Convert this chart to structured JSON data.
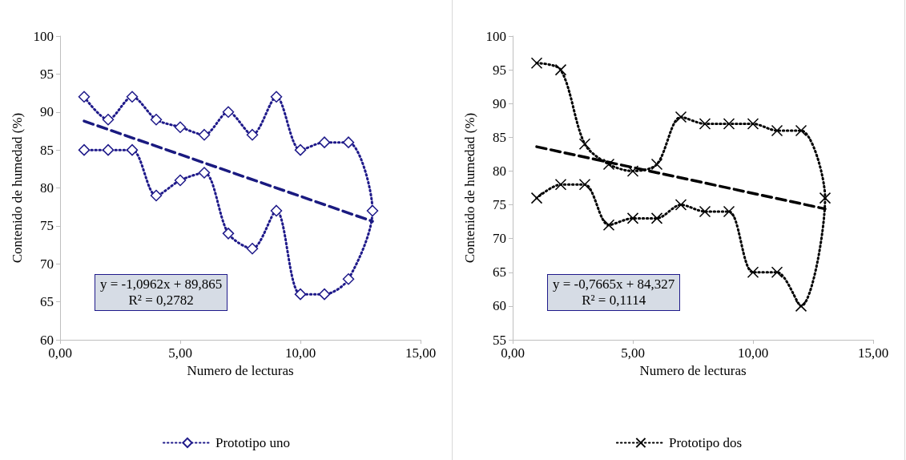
{
  "chart_data": [
    {
      "type": "line",
      "xlabel": "Numero de lecturas",
      "ylabel": "Contenido de humedad (%)",
      "xlim": [
        0,
        15
      ],
      "xticks": [
        {
          "value": 0,
          "label": "0,00"
        },
        {
          "value": 5,
          "label": "5,00"
        },
        {
          "value": 10,
          "label": "10,00"
        },
        {
          "value": 15,
          "label": "15,00"
        }
      ],
      "ylim": [
        60,
        100
      ],
      "yticks": [
        60,
        65,
        70,
        75,
        80,
        85,
        90,
        95,
        100
      ],
      "grid": false,
      "legend": "bottom",
      "annotations": [
        "y = -1,0962x + 89,865",
        "R² = 0,2782"
      ],
      "series": [
        {
          "name": "Prototipo uno",
          "marker": "diamond",
          "line_style": "dotted",
          "color": "#1f1a8a",
          "x": [
            1,
            2,
            3,
            4,
            5,
            6,
            7,
            8,
            9,
            10,
            11,
            12,
            13,
            12,
            11,
            10,
            9,
            8,
            7,
            6,
            5,
            4,
            3,
            2,
            1
          ],
          "values": [
            92,
            89,
            92,
            89,
            88,
            87,
            90,
            87,
            92,
            85,
            86,
            86,
            77,
            68,
            66,
            66,
            77,
            72,
            74,
            82,
            81,
            79,
            85,
            85,
            85
          ]
        },
        {
          "marker": "none",
          "line_style": "dashed",
          "color": "#1a1a80",
          "x": [
            1,
            13
          ],
          "values": [
            88.8,
            75.6
          ]
        }
      ]
    },
    {
      "type": "line",
      "xlabel": "Numero de lecturas",
      "ylabel": "Contenido de humedad (%)",
      "xlim": [
        0,
        15
      ],
      "xticks": [
        {
          "value": 0,
          "label": "0,00"
        },
        {
          "value": 5,
          "label": "5,00"
        },
        {
          "value": 10,
          "label": "10,00"
        },
        {
          "value": 15,
          "label": "15,00"
        }
      ],
      "ylim": [
        55,
        100
      ],
      "yticks": [
        55,
        60,
        65,
        70,
        75,
        80,
        85,
        90,
        95,
        100
      ],
      "grid": false,
      "legend": "bottom",
      "annotations": [
        "y = -0,7665x + 84,327",
        "R² = 0,1114"
      ],
      "series": [
        {
          "name": "Prototipo dos",
          "marker": "cross",
          "line_style": "dotted",
          "color": "#000000",
          "x": [
            1,
            2,
            3,
            4,
            5,
            6,
            7,
            8,
            9,
            10,
            11,
            12,
            13,
            12,
            11,
            10,
            9,
            8,
            7,
            6,
            5,
            4,
            3,
            2,
            1
          ],
          "values": [
            96,
            95,
            84,
            81,
            80,
            81,
            88,
            87,
            87,
            87,
            86,
            86,
            76,
            60,
            65,
            65,
            74,
            74,
            75,
            73,
            73,
            72,
            78,
            78,
            76
          ]
        },
        {
          "marker": "none",
          "line_style": "dashed",
          "color": "#000000",
          "x": [
            1,
            13
          ],
          "values": [
            83.6,
            74.4
          ]
        }
      ]
    }
  ]
}
